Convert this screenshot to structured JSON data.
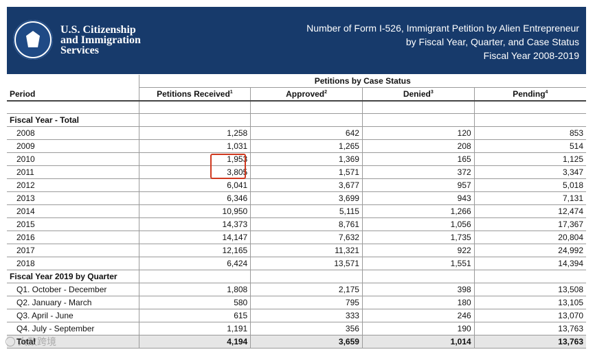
{
  "header": {
    "agency_lines": [
      "U.S. Citizenship",
      "and Immigration",
      "Services"
    ],
    "title_lines": [
      "Number of Form I-526, Immigrant Petition by Alien Entrepreneur",
      "by Fiscal Year, Quarter, and Case Status",
      "Fiscal Year 2008-2019"
    ]
  },
  "table": {
    "group_header": "Petitions by Case Status",
    "period_header": "Period",
    "columns": [
      {
        "label": "Petitions Received",
        "note": "1"
      },
      {
        "label": "Approved",
        "note": "2"
      },
      {
        "label": "Denied",
        "note": "3"
      },
      {
        "label": "Pending",
        "note": "4"
      }
    ],
    "sections": [
      {
        "title": "Fiscal Year - Total",
        "rows": [
          {
            "period": "2008",
            "values": [
              "1,258",
              "642",
              "120",
              "853"
            ]
          },
          {
            "period": "2009",
            "values": [
              "1,031",
              "1,265",
              "208",
              "514"
            ]
          },
          {
            "period": "2010",
            "values": [
              "1,953",
              "1,369",
              "165",
              "1,125"
            ]
          },
          {
            "period": "2011",
            "values": [
              "3,805",
              "1,571",
              "372",
              "3,347"
            ]
          },
          {
            "period": "2012",
            "values": [
              "6,041",
              "3,677",
              "957",
              "5,018"
            ]
          },
          {
            "period": "2013",
            "values": [
              "6,346",
              "3,699",
              "943",
              "7,131"
            ]
          },
          {
            "period": "2014",
            "values": [
              "10,950",
              "5,115",
              "1,266",
              "12,474"
            ]
          },
          {
            "period": "2015",
            "values": [
              "14,373",
              "8,761",
              "1,056",
              "17,367"
            ]
          },
          {
            "period": "2016",
            "values": [
              "14,147",
              "7,632",
              "1,735",
              "20,804"
            ]
          },
          {
            "period": "2017",
            "values": [
              "12,165",
              "11,321",
              "922",
              "24,992"
            ]
          },
          {
            "period": "2018",
            "values": [
              "6,424",
              "13,571",
              "1,551",
              "14,394"
            ]
          }
        ]
      },
      {
        "title": "Fiscal Year 2019 by Quarter",
        "rows": [
          {
            "period": "Q1. October - December",
            "values": [
              "1,808",
              "2,175",
              "398",
              "13,508"
            ]
          },
          {
            "period": "Q2. January - March",
            "values": [
              "580",
              "795",
              "180",
              "13,105"
            ]
          },
          {
            "period": "Q3. April - June",
            "values": [
              "615",
              "333",
              "246",
              "13,070"
            ]
          },
          {
            "period": "Q4. July - September",
            "values": [
              "1,191",
              "356",
              "190",
              "13,763"
            ]
          }
        ]
      }
    ],
    "total": {
      "period": "Total",
      "values": [
        "4,194",
        "3,659",
        "1,014",
        "13,763"
      ]
    }
  },
  "watermark": {
    "text": "大数跨境"
  },
  "colors": {
    "header_bg": "#173a6b",
    "highlight": "#d0391f",
    "total_bg": "#e6e6e6"
  }
}
